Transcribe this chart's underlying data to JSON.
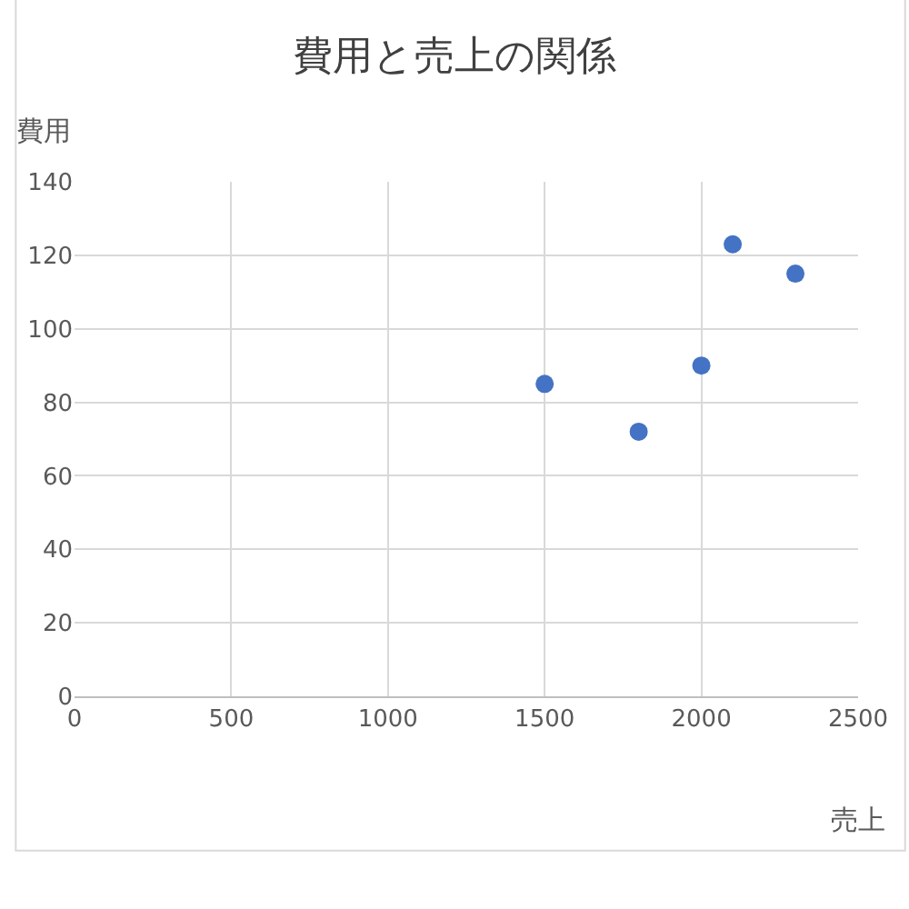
{
  "chart_data": {
    "type": "scatter",
    "title": "費用と売上の関係",
    "xlabel": "売上",
    "ylabel": "費用",
    "x": [
      1500,
      1800,
      2000,
      2100,
      2300
    ],
    "series": [
      {
        "color": "#4472c4",
        "values": [
          85,
          72,
          90,
          123,
          115
        ]
      }
    ],
    "xlim": [
      0,
      2500
    ],
    "xticks": [
      0,
      500,
      1000,
      1500,
      2000,
      2500
    ],
    "ylim": [
      0,
      140
    ],
    "yticks": [
      0,
      20,
      40,
      60,
      80,
      100,
      120,
      140
    ],
    "grid": true,
    "marker": "circle"
  }
}
